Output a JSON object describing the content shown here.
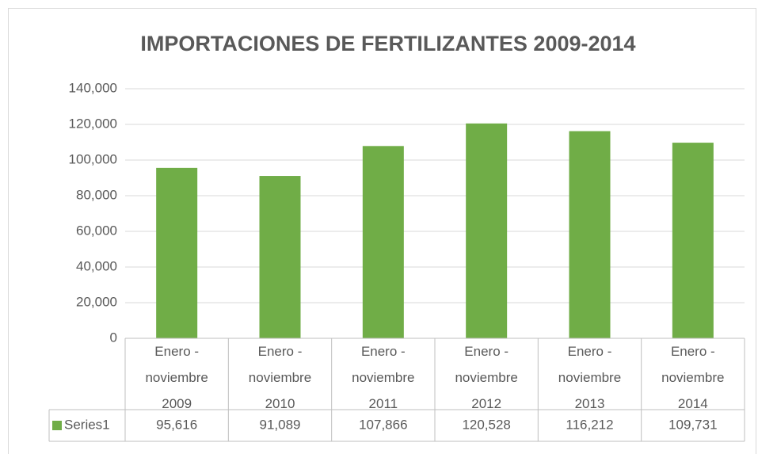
{
  "chart_data": {
    "type": "bar",
    "title": "IMPORTACIONES DE FERTILIZANTES  2009-2014",
    "categories": [
      "Enero - noviembre 2009",
      "Enero - noviembre 2010",
      "Enero - noviembre 2011",
      "Enero - noviembre 2012",
      "Enero - noviembre 2013",
      "Enero - noviembre 2014"
    ],
    "series": [
      {
        "name": "Series1",
        "color": "#70ad47",
        "values": [
          95616,
          91089,
          107866,
          120528,
          116212,
          109731
        ],
        "value_labels": [
          "95,616",
          "91,089",
          "107,866",
          "120,528",
          "116,212",
          "109,731"
        ]
      }
    ],
    "ylim": [
      0,
      140000
    ],
    "yticks": [
      0,
      {
        "value": 20000,
        "label": "20,000"
      },
      {
        "value": 40000,
        "label": "40,000"
      },
      {
        "value": 60000,
        "label": "60,000"
      },
      {
        "value": 80000,
        "label": "80,000"
      },
      {
        "value": 100000,
        "label": "100,000"
      },
      {
        "value": 120000,
        "label": "120,000"
      },
      {
        "value": 140000,
        "label": "140,000"
      }
    ],
    "grid": true,
    "data_table": true
  }
}
